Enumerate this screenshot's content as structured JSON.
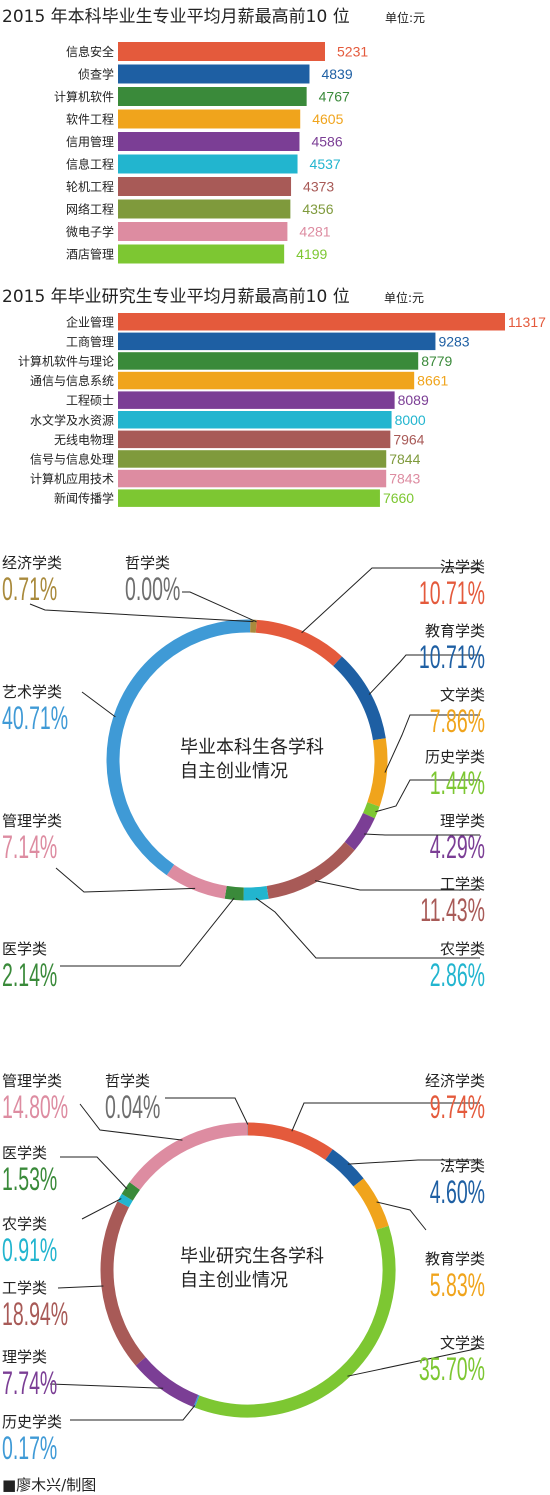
{
  "credit": "■廖木兴/制图",
  "chart_data": [
    {
      "type": "bar",
      "title": "2015 年本科毕业生专业平均月薪最高前10 位",
      "unit": "单位:元",
      "categories": [
        "信息安全",
        "侦查学",
        "计算机软件",
        "软件工程",
        "信用管理",
        "信息工程",
        "轮机工程",
        "网络工程",
        "微电子学",
        "酒店管理"
      ],
      "values": [
        5231,
        4839,
        4767,
        4605,
        4586,
        4537,
        4373,
        4356,
        4281,
        4199
      ],
      "colors": [
        "#e45a3c",
        "#1e5fa3",
        "#3a8a3a",
        "#f0a41c",
        "#7b3e95",
        "#22b5cf",
        "#a85a57",
        "#7f9a3c",
        "#dd8ca1",
        "#7dc732"
      ]
    },
    {
      "type": "bar",
      "title": "2015 年毕业研究生专业平均月薪最高前10 位",
      "unit": "单位:元",
      "categories": [
        "企业管理",
        "工商管理",
        "计算机软件与理论",
        "通信与信息系统",
        "工程硕士",
        "水文学及水资源",
        "无线电物理",
        "信号与信息处理",
        "计算机应用技术",
        "新闻传播学"
      ],
      "values": [
        11317,
        9283,
        8779,
        8661,
        8089,
        8000,
        7964,
        7844,
        7843,
        7660
      ],
      "colors": [
        "#e45a3c",
        "#1e5fa3",
        "#3a8a3a",
        "#f0a41c",
        "#7b3e95",
        "#22b5cf",
        "#a85a57",
        "#7f9a3c",
        "#dd8ca1",
        "#7dc732"
      ]
    },
    {
      "type": "pie",
      "title": "毕业本科生各学科\n自主创业情况",
      "slices": [
        {
          "label": "法学类",
          "value": 10.71,
          "display": "10.71%",
          "color": "#e45a3c"
        },
        {
          "label": "教育学类",
          "value": 10.71,
          "display": "10.71%",
          "color": "#1e5fa3"
        },
        {
          "label": "文学类",
          "value": 7.86,
          "display": "7.86%",
          "color": "#f0a41c"
        },
        {
          "label": "历史学类",
          "value": 1.44,
          "display": "1.44%",
          "color": "#7dc732"
        },
        {
          "label": "理学类",
          "value": 4.29,
          "display": "4.29%",
          "color": "#7b3e95"
        },
        {
          "label": "工学类",
          "value": 11.43,
          "display": "11.43%",
          "color": "#a85a57"
        },
        {
          "label": "农学类",
          "value": 2.86,
          "display": "2.86%",
          "color": "#22b5cf"
        },
        {
          "label": "医学类",
          "value": 2.14,
          "display": "2.14%",
          "color": "#3a8a3a"
        },
        {
          "label": "管理学类",
          "value": 7.14,
          "display": "7.14%",
          "color": "#dd8ca1"
        },
        {
          "label": "艺术学类",
          "value": 40.71,
          "display": "40.71%",
          "color": "#3f9ad6"
        },
        {
          "label": "经济学类",
          "value": 0.71,
          "display": "0.71%",
          "color": "#a98a3c"
        },
        {
          "label": "哲学类",
          "value": 0.0,
          "display": "0.00%",
          "color": "#6e6e6e"
        }
      ]
    },
    {
      "type": "pie",
      "title": "毕业研究生各学科\n自主创业情况",
      "slices": [
        {
          "label": "经济学类",
          "value": 9.74,
          "display": "9.74%",
          "color": "#e45a3c"
        },
        {
          "label": "法学类",
          "value": 4.6,
          "display": "4.60%",
          "color": "#1e5fa3"
        },
        {
          "label": "教育学类",
          "value": 5.83,
          "display": "5.83%",
          "color": "#f0a41c"
        },
        {
          "label": "文学类",
          "value": 35.7,
          "display": "35.70%",
          "color": "#7dc732"
        },
        {
          "label": "历史学类",
          "value": 0.17,
          "display": "0.17%",
          "color": "#3f9ad6"
        },
        {
          "label": "理学类",
          "value": 7.74,
          "display": "7.74%",
          "color": "#7b3e95"
        },
        {
          "label": "工学类",
          "value": 18.94,
          "display": "18.94%",
          "color": "#a85a57"
        },
        {
          "label": "农学类",
          "value": 0.91,
          "display": "0.91%",
          "color": "#22b5cf"
        },
        {
          "label": "医学类",
          "value": 1.53,
          "display": "1.53%",
          "color": "#3a8a3a"
        },
        {
          "label": "管理学类",
          "value": 14.8,
          "display": "14.80%",
          "color": "#dd8ca1"
        },
        {
          "label": "哲学类",
          "value": 0.04,
          "display": "0.04%",
          "color": "#6e6e6e"
        }
      ]
    }
  ]
}
